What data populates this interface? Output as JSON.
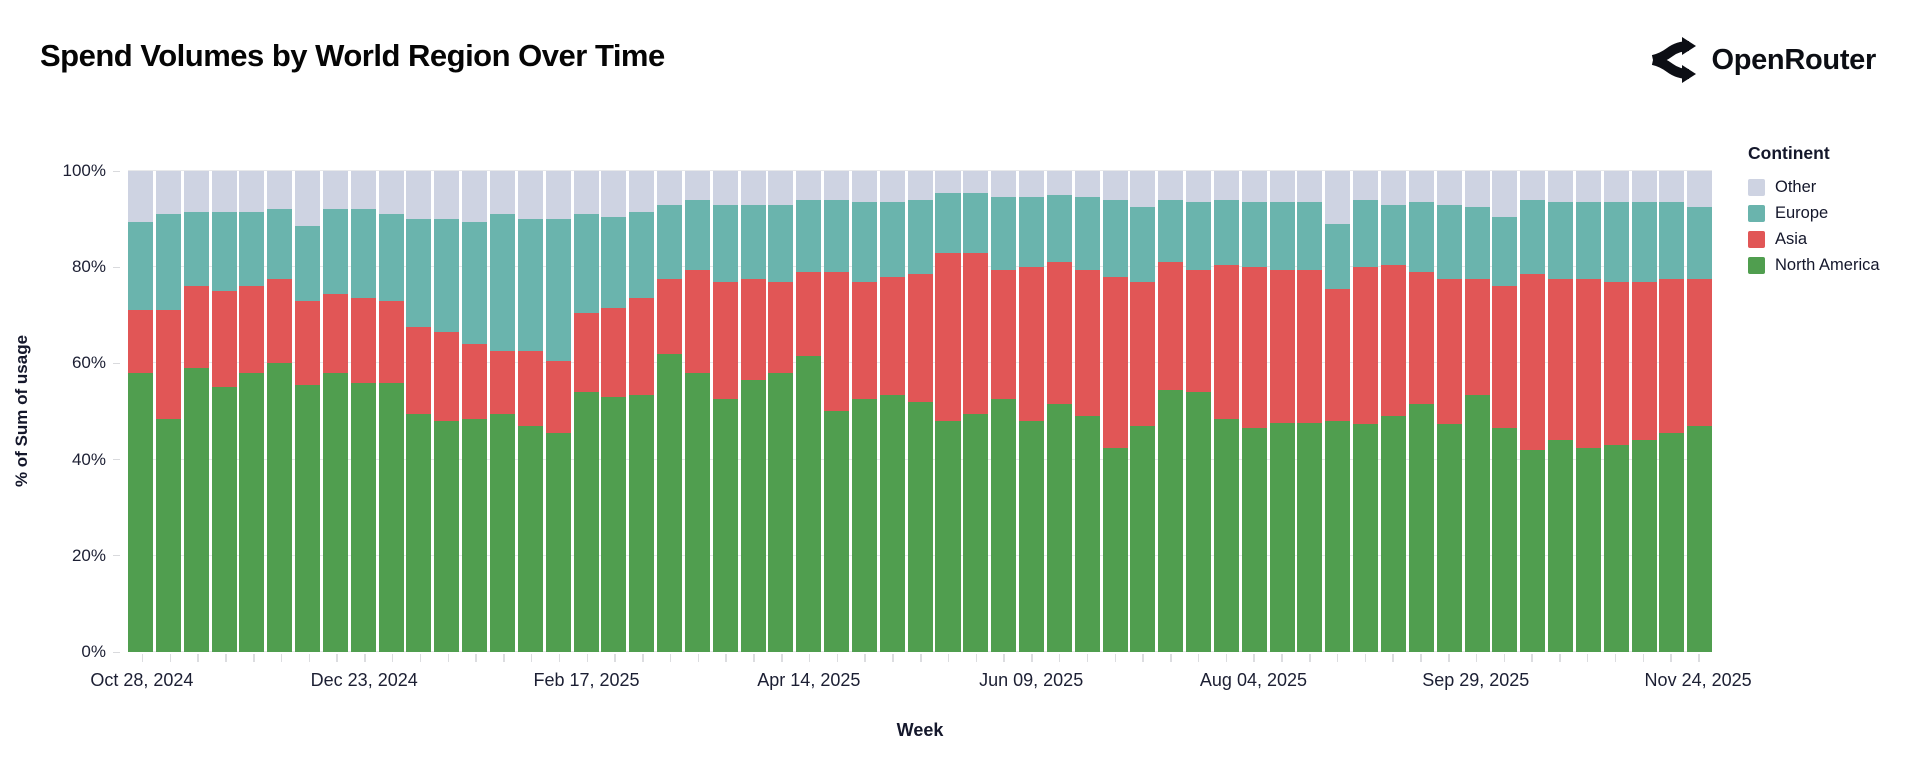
{
  "header": {
    "title": "Spend Volumes by World Region Over Time",
    "brand": "OpenRouter"
  },
  "axes": {
    "y_title": "% of Sum of usage",
    "x_title": "Week"
  },
  "legend": {
    "title": "Continent",
    "items": [
      {
        "label": "Other",
        "color": "#ced3e2"
      },
      {
        "label": "Europe",
        "color": "#6ab4ad"
      },
      {
        "label": "Asia",
        "color": "#e15656"
      },
      {
        "label": "North America",
        "color": "#509e4f"
      }
    ]
  },
  "chart_data": {
    "type": "bar",
    "subtype": "stacked-100-percent",
    "title": "Spend Volumes by World Region Over Time",
    "xlabel": "Week",
    "ylabel": "% of Sum of usage",
    "ylim": [
      0,
      100
    ],
    "y_ticks": [
      0,
      20,
      40,
      60,
      80,
      100
    ],
    "y_tick_labels": [
      "0%",
      "20%",
      "40%",
      "60%",
      "80%",
      "100%"
    ],
    "grid": "horizontal",
    "legend_position": "right",
    "x_tick_indices": [
      0,
      8,
      16,
      24,
      32,
      40,
      48,
      56
    ],
    "x_tick_labels": [
      "Oct 28, 2024",
      "Dec 23, 2024",
      "Feb 17, 2025",
      "Apr 14, 2025",
      "Jun 09, 2025",
      "Aug 04, 2025",
      "Sep 29, 2025",
      "Nov 24, 2025"
    ],
    "x": [
      "Oct 28, 2024",
      "Nov 04, 2024",
      "Nov 11, 2024",
      "Nov 18, 2024",
      "Nov 25, 2024",
      "Dec 02, 2024",
      "Dec 09, 2024",
      "Dec 16, 2024",
      "Dec 23, 2024",
      "Dec 30, 2024",
      "Jan 06, 2025",
      "Jan 13, 2025",
      "Jan 20, 2025",
      "Jan 27, 2025",
      "Feb 03, 2025",
      "Feb 10, 2025",
      "Feb 17, 2025",
      "Feb 24, 2025",
      "Mar 03, 2025",
      "Mar 10, 2025",
      "Mar 17, 2025",
      "Mar 24, 2025",
      "Mar 31, 2025",
      "Apr 07, 2025",
      "Apr 14, 2025",
      "Apr 21, 2025",
      "Apr 28, 2025",
      "May 05, 2025",
      "May 12, 2025",
      "May 19, 2025",
      "May 26, 2025",
      "Jun 02, 2025",
      "Jun 09, 2025",
      "Jun 16, 2025",
      "Jun 23, 2025",
      "Jun 30, 2025",
      "Jul 07, 2025",
      "Jul 14, 2025",
      "Jul 21, 2025",
      "Jul 28, 2025",
      "Aug 04, 2025",
      "Aug 11, 2025",
      "Aug 18, 2025",
      "Aug 25, 2025",
      "Sep 01, 2025",
      "Sep 08, 2025",
      "Sep 15, 2025",
      "Sep 22, 2025",
      "Sep 29, 2025",
      "Oct 06, 2025",
      "Oct 13, 2025",
      "Oct 20, 2025",
      "Oct 27, 2025",
      "Nov 03, 2025",
      "Nov 10, 2025",
      "Nov 17, 2025",
      "Nov 24, 2025"
    ],
    "series": [
      {
        "name": "North America",
        "color": "#509e4f",
        "values": [
          58,
          48.5,
          59,
          55,
          58,
          60,
          55.5,
          58,
          56,
          56,
          49.5,
          48,
          48.5,
          49.5,
          47,
          45.5,
          54,
          53,
          53.5,
          62,
          58,
          52.5,
          56.5,
          58,
          61.5,
          50,
          52.5,
          53.5,
          52,
          48,
          49.5,
          52.5,
          48,
          51.5,
          49,
          42.5,
          47,
          54.5,
          54,
          48.5,
          46.5,
          47.5,
          47.5,
          48,
          47.5,
          49,
          51.5,
          47.5,
          53.5,
          46.5,
          42,
          44,
          42.5,
          43,
          44,
          45.5,
          47
        ]
      },
      {
        "name": "Asia",
        "color": "#e15656",
        "values": [
          13,
          22.5,
          17,
          20,
          18,
          17.5,
          17.5,
          16.5,
          17.5,
          17,
          18,
          18.5,
          15.5,
          13,
          15.5,
          15,
          16.5,
          18.5,
          20,
          15.5,
          21.5,
          24.5,
          21,
          19,
          17.5,
          29,
          24.5,
          24.5,
          26.5,
          35,
          33.5,
          27,
          32,
          29.5,
          30.5,
          35.5,
          30,
          26.5,
          25.5,
          32,
          33.5,
          32,
          32,
          27.5,
          32.5,
          31.5,
          27.5,
          30,
          24,
          29.5,
          36.5,
          33.5,
          35,
          34,
          33,
          32,
          30.5
        ]
      },
      {
        "name": "Europe",
        "color": "#6ab4ad",
        "values": [
          18.5,
          20,
          15.5,
          16.5,
          15.5,
          14.5,
          15.5,
          17.5,
          18.5,
          18,
          22.5,
          23.5,
          25.5,
          28.5,
          27.5,
          29.5,
          20.5,
          19,
          18,
          15.5,
          14.5,
          16,
          15.5,
          16,
          15,
          15,
          16.5,
          15.5,
          15.5,
          12.5,
          12.5,
          15,
          14.5,
          14,
          15,
          16,
          15.5,
          13,
          14,
          13.5,
          13.5,
          14,
          14,
          13.5,
          14,
          12.5,
          14.5,
          15.5,
          15,
          14.5,
          15.5,
          16,
          16,
          16.5,
          16.5,
          16,
          15
        ]
      },
      {
        "name": "Other",
        "color": "#ced3e2",
        "values": [
          10.5,
          9,
          8.5,
          8.5,
          8.5,
          8,
          11.5,
          8,
          8,
          9,
          10,
          10,
          10.5,
          9,
          10,
          10,
          9,
          9.5,
          8.5,
          7,
          6,
          7,
          7,
          7,
          6,
          6,
          6.5,
          6.5,
          6,
          4.5,
          4.5,
          5.5,
          5.5,
          5,
          5.5,
          6,
          7.5,
          6,
          6.5,
          6,
          6.5,
          6.5,
          6.5,
          11,
          6,
          7,
          6.5,
          7,
          7.5,
          9.5,
          6,
          6.5,
          6.5,
          6.5,
          6.5,
          6.5,
          7.5
        ]
      }
    ]
  }
}
